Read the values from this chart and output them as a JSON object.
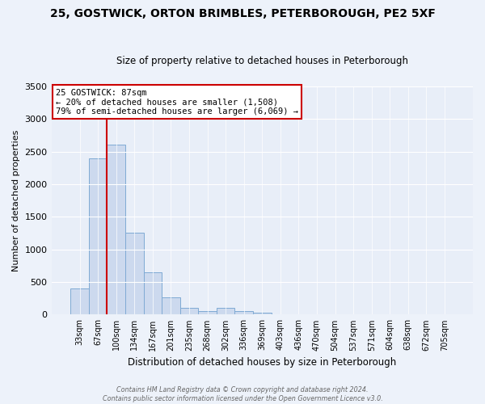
{
  "title1": "25, GOSTWICK, ORTON BRIMBLES, PETERBOROUGH, PE2 5XF",
  "title2": "Size of property relative to detached houses in Peterborough",
  "xlabel": "Distribution of detached houses by size in Peterborough",
  "ylabel": "Number of detached properties",
  "bar_labels": [
    "33sqm",
    "67sqm",
    "100sqm",
    "134sqm",
    "167sqm",
    "201sqm",
    "235sqm",
    "268sqm",
    "302sqm",
    "336sqm",
    "369sqm",
    "403sqm",
    "436sqm",
    "470sqm",
    "504sqm",
    "537sqm",
    "571sqm",
    "604sqm",
    "638sqm",
    "672sqm",
    "705sqm"
  ],
  "bar_values": [
    400,
    2400,
    2600,
    1250,
    650,
    260,
    100,
    50,
    110,
    50,
    30,
    0,
    0,
    0,
    0,
    0,
    0,
    0,
    0,
    0,
    0
  ],
  "bar_color": "#ccd9ee",
  "bar_edge_color": "#7faad4",
  "vline_color": "#cc0000",
  "vline_pos": 1.5,
  "ylim": [
    0,
    3500
  ],
  "yticks": [
    0,
    500,
    1000,
    1500,
    2000,
    2500,
    3000,
    3500
  ],
  "annotation_title": "25 GOSTWICK: 87sqm",
  "annotation_line1": "← 20% of detached houses are smaller (1,508)",
  "annotation_line2": "79% of semi-detached houses are larger (6,069) →",
  "annotation_box_color": "#ffffff",
  "annotation_box_edge": "#cc0000",
  "footer_line1": "Contains HM Land Registry data © Crown copyright and database right 2024.",
  "footer_line2": "Contains public sector information licensed under the Open Government Licence v3.0.",
  "background_color": "#edf2fa",
  "plot_bg_color": "#e8eef8",
  "grid_color": "#ffffff",
  "title1_fontsize": 10,
  "title2_fontsize": 8.5
}
